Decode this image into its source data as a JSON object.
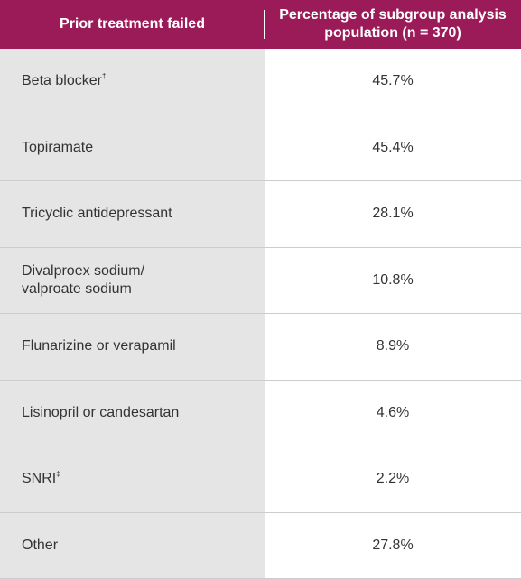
{
  "table": {
    "header": {
      "col1": "Prior treatment failed",
      "col2": "Percentage of subgroup analysis population (n = 370)"
    },
    "rows": [
      {
        "label": "Beta blocker",
        "mark": "†",
        "value": "45.7%"
      },
      {
        "label": "Topiramate",
        "mark": "",
        "value": "45.4%"
      },
      {
        "label": "Tricyclic antidepressant",
        "mark": "",
        "value": "28.1%"
      },
      {
        "label": "Divalproex sodium/\nvalproate sodium",
        "mark": "",
        "value": "10.8%"
      },
      {
        "label": "Flunarizine or verapamil",
        "mark": "",
        "value": "8.9%"
      },
      {
        "label": "Lisinopril or candesartan",
        "mark": "",
        "value": "4.6%"
      },
      {
        "label": "SNRI",
        "mark": "‡",
        "value": "2.2%"
      },
      {
        "label": "Other",
        "mark": "",
        "value": "27.8%"
      }
    ]
  },
  "colors": {
    "header_bg": "#9b1b59",
    "label_col_bg": "#e5e5e5",
    "divider": "#cccccc"
  }
}
